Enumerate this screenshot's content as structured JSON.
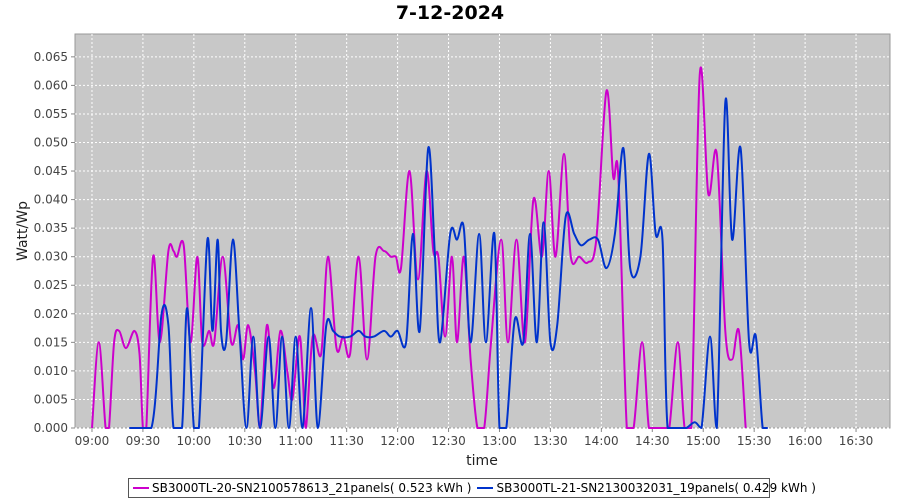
{
  "chart_data": {
    "type": "line",
    "title": "7-12-2024",
    "xlabel": "time",
    "ylabel": "Watt/Wp",
    "x_tick_labels": [
      "09:00",
      "09:30",
      "10:00",
      "10:30",
      "11:00",
      "11:30",
      "12:00",
      "12:30",
      "13:00",
      "13:30",
      "14:00",
      "14:30",
      "15:00",
      "15:30",
      "16:00",
      "16:30"
    ],
    "x_tick_minutes": [
      540,
      570,
      600,
      630,
      660,
      690,
      720,
      750,
      780,
      810,
      840,
      870,
      900,
      930,
      960,
      990
    ],
    "xlim_minutes": [
      530,
      1010
    ],
    "ylim": [
      0,
      0.069
    ],
    "y_ticks": [
      0.0,
      0.005,
      0.01,
      0.015,
      0.02,
      0.025,
      0.03,
      0.035,
      0.04,
      0.045,
      0.05,
      0.055,
      0.06,
      0.065
    ],
    "y_tick_labels": [
      "0.000",
      "0.005",
      "0.010",
      "0.015",
      "0.020",
      "0.025",
      "0.030",
      "0.035",
      "0.040",
      "0.045",
      "0.050",
      "0.055",
      "0.060",
      "0.065"
    ],
    "grid": true,
    "legend_position": "bottom",
    "series": [
      {
        "name": "SB3000TL-20-SN2100578613_21panels( 0.523 kWh )",
        "color": "#cc00cc",
        "points": [
          [
            540,
            0
          ],
          [
            544,
            0.015
          ],
          [
            548,
            0
          ],
          [
            550,
            0
          ],
          [
            553,
            0.015
          ],
          [
            556,
            0.017
          ],
          [
            560,
            0.014
          ],
          [
            565,
            0.017
          ],
          [
            568,
            0.013
          ],
          [
            570,
            0
          ],
          [
            572,
            0
          ],
          [
            576,
            0.03
          ],
          [
            580,
            0.015
          ],
          [
            585,
            0.031
          ],
          [
            588,
            0.031
          ],
          [
            590,
            0.03
          ],
          [
            594,
            0.032
          ],
          [
            598,
            0.015
          ],
          [
            602,
            0.03
          ],
          [
            605,
            0.015
          ],
          [
            609,
            0.017
          ],
          [
            612,
            0.015
          ],
          [
            617,
            0.03
          ],
          [
            622,
            0.015
          ],
          [
            626,
            0.018
          ],
          [
            629,
            0.012
          ],
          [
            632,
            0.018
          ],
          [
            636,
            0.01
          ],
          [
            639,
            0.0
          ],
          [
            643,
            0.018
          ],
          [
            647,
            0.007
          ],
          [
            651,
            0.017
          ],
          [
            655,
            0.01
          ],
          [
            658,
            0.005
          ],
          [
            662,
            0.016
          ],
          [
            664,
            0.01
          ],
          [
            666,
            0.0
          ],
          [
            670,
            0.016
          ],
          [
            675,
            0.013
          ],
          [
            679,
            0.03
          ],
          [
            684,
            0.014
          ],
          [
            688,
            0.016
          ],
          [
            692,
            0.013
          ],
          [
            697,
            0.03
          ],
          [
            702,
            0.012
          ],
          [
            707,
            0.03
          ],
          [
            712,
            0.031
          ],
          [
            716,
            0.03
          ],
          [
            719,
            0.03
          ],
          [
            722,
            0.028
          ],
          [
            727,
            0.045
          ],
          [
            732,
            0.026
          ],
          [
            737,
            0.045
          ],
          [
            741,
            0.031
          ],
          [
            744,
            0.03
          ],
          [
            748,
            0.016
          ],
          [
            752,
            0.03
          ],
          [
            755,
            0.015
          ],
          [
            759,
            0.03
          ],
          [
            763,
            0.012
          ],
          [
            767,
            0.0
          ],
          [
            771,
            0.0
          ],
          [
            775,
            0.015
          ],
          [
            781,
            0.033
          ],
          [
            785,
            0.015
          ],
          [
            790,
            0.033
          ],
          [
            795,
            0.015
          ],
          [
            800,
            0.04
          ],
          [
            805,
            0.03
          ],
          [
            809,
            0.045
          ],
          [
            813,
            0.03
          ],
          [
            818,
            0.048
          ],
          [
            822,
            0.03
          ],
          [
            827,
            0.03
          ],
          [
            832,
            0.029
          ],
          [
            837,
            0.033
          ],
          [
            843,
            0.059
          ],
          [
            847,
            0.044
          ],
          [
            850,
            0.044
          ],
          [
            855,
            0.0
          ],
          [
            859,
            0.0
          ],
          [
            864,
            0.015
          ],
          [
            868,
            0.0
          ],
          [
            872,
            0.0
          ],
          [
            876,
            0.0
          ],
          [
            880,
            0.0
          ],
          [
            885,
            0.015
          ],
          [
            889,
            0.0
          ],
          [
            893,
            0.0
          ],
          [
            898,
            0.062
          ],
          [
            903,
            0.041
          ],
          [
            908,
            0.048
          ],
          [
            913,
            0.017
          ],
          [
            917,
            0.012
          ],
          [
            921,
            0.017
          ],
          [
            925,
            0.0
          ]
        ]
      },
      {
        "name": "SB3000TL-21-SN2130032031_19panels( 0.429 kWh )",
        "color": "#0033cc",
        "points": [
          [
            562,
            0
          ],
          [
            575,
            0
          ],
          [
            581,
            0.02
          ],
          [
            585,
            0.018
          ],
          [
            588,
            0.0
          ],
          [
            593,
            0.0
          ],
          [
            596,
            0.021
          ],
          [
            600,
            0.0
          ],
          [
            603,
            0.0
          ],
          [
            608,
            0.033
          ],
          [
            611,
            0.017
          ],
          [
            614,
            0.033
          ],
          [
            616,
            0.017
          ],
          [
            619,
            0.015
          ],
          [
            623,
            0.033
          ],
          [
            627,
            0.016
          ],
          [
            631,
            0.0
          ],
          [
            635,
            0.016
          ],
          [
            639,
            0.0
          ],
          [
            644,
            0.016
          ],
          [
            648,
            0.0
          ],
          [
            652,
            0.016
          ],
          [
            656,
            0.0
          ],
          [
            660,
            0.016
          ],
          [
            664,
            0.0
          ],
          [
            669,
            0.021
          ],
          [
            673,
            0.0
          ],
          [
            678,
            0.018
          ],
          [
            682,
            0.017
          ],
          [
            686,
            0.016
          ],
          [
            692,
            0.016
          ],
          [
            697,
            0.017
          ],
          [
            701,
            0.016
          ],
          [
            706,
            0.016
          ],
          [
            712,
            0.017
          ],
          [
            716,
            0.016
          ],
          [
            720,
            0.017
          ],
          [
            725,
            0.015
          ],
          [
            729,
            0.034
          ],
          [
            733,
            0.017
          ],
          [
            738,
            0.049
          ],
          [
            742,
            0.03
          ],
          [
            745,
            0.015
          ],
          [
            751,
            0.034
          ],
          [
            755,
            0.033
          ],
          [
            759,
            0.035
          ],
          [
            763,
            0.015
          ],
          [
            768,
            0.034
          ],
          [
            772,
            0.015
          ],
          [
            777,
            0.034
          ],
          [
            780,
            0.0
          ],
          [
            784,
            0.0
          ],
          [
            789,
            0.019
          ],
          [
            794,
            0.015
          ],
          [
            798,
            0.034
          ],
          [
            802,
            0.015
          ],
          [
            806,
            0.036
          ],
          [
            810,
            0.015
          ],
          [
            814,
            0.018
          ],
          [
            819,
            0.037
          ],
          [
            824,
            0.034
          ],
          [
            828,
            0.032
          ],
          [
            833,
            0.033
          ],
          [
            838,
            0.033
          ],
          [
            843,
            0.028
          ],
          [
            848,
            0.034
          ],
          [
            853,
            0.049
          ],
          [
            857,
            0.028
          ],
          [
            863,
            0.03
          ],
          [
            868,
            0.048
          ],
          [
            872,
            0.034
          ],
          [
            876,
            0.033
          ],
          [
            879,
            0.0
          ],
          [
            886,
            0.0
          ],
          [
            890,
            0.0
          ],
          [
            895,
            0.001
          ],
          [
            899,
            0.0
          ],
          [
            904,
            0.016
          ],
          [
            908,
            0.0
          ],
          [
            913,
            0.057
          ],
          [
            917,
            0.033
          ],
          [
            922,
            0.049
          ],
          [
            927,
            0.015
          ],
          [
            931,
            0.016
          ],
          [
            935,
            0.0
          ],
          [
            938,
            0.0
          ]
        ]
      }
    ]
  }
}
